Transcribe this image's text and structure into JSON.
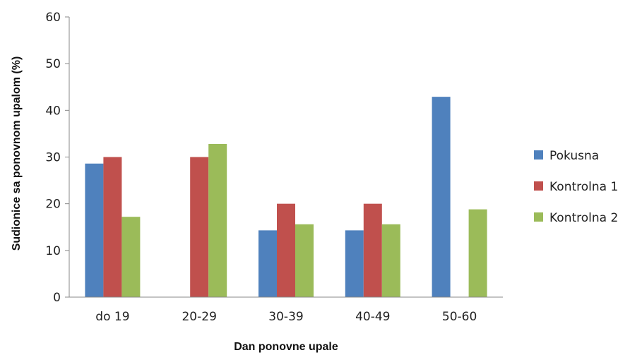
{
  "chart_data": {
    "type": "bar",
    "categories": [
      "do 19",
      "20-29",
      "30-39",
      "40-49",
      "50-60"
    ],
    "series": [
      {
        "name": "Pokusna",
        "color": "#4F81BD",
        "values": [
          28.6,
          null,
          14.3,
          14.3,
          42.9
        ]
      },
      {
        "name": "Kontrolna 1",
        "color": "#C0504D",
        "values": [
          30,
          30,
          20,
          20,
          null
        ]
      },
      {
        "name": "Kontrolna 2",
        "color": "#9BBB59",
        "values": [
          17.2,
          32.8,
          15.6,
          15.6,
          18.8
        ]
      }
    ],
    "xlabel": "Dan ponovne upale",
    "ylabel": "Sudionice sa ponovnom upalom (%)",
    "ylim": [
      0,
      60
    ],
    "yticks": [
      0,
      10,
      20,
      30,
      40,
      50,
      60
    ],
    "grid": false,
    "legend": "right"
  }
}
